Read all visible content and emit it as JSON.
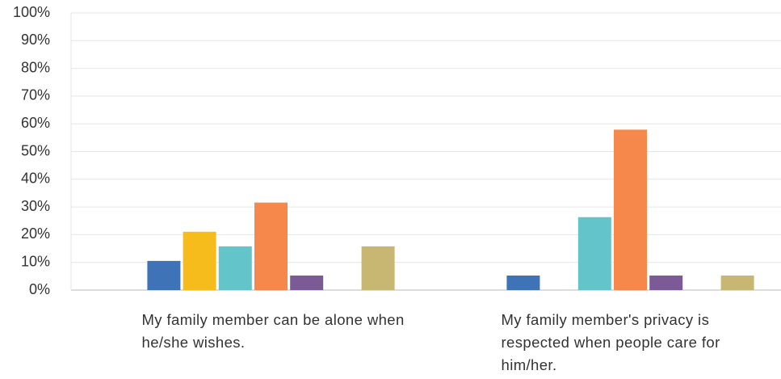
{
  "chart_data": {
    "type": "bar",
    "categories": [
      "My family member can be alone when he/she wishes.",
      "My family member's privacy is respected when people care for him/her."
    ],
    "series": [
      {
        "color": "#3f73b8",
        "values": [
          10.53,
          5.26
        ]
      },
      {
        "color": "#f5bc1c",
        "values": [
          21.05,
          0
        ]
      },
      {
        "color": "#63c5c9",
        "values": [
          15.79,
          26.32
        ]
      },
      {
        "color": "#f5884a",
        "values": [
          31.58,
          57.89
        ]
      },
      {
        "color": "#7b5a96",
        "values": [
          5.26,
          5.26
        ]
      },
      {
        "color": "#a3c649",
        "values": [
          0,
          0
        ]
      },
      {
        "color": "#c8b673",
        "values": [
          15.79,
          5.26
        ]
      }
    ],
    "ylim": [
      0,
      100
    ],
    "yticks": [
      {
        "value": 0,
        "label": "0%"
      },
      {
        "value": 10,
        "label": "10%"
      },
      {
        "value": 20,
        "label": "20%"
      },
      {
        "value": 30,
        "label": "30%"
      },
      {
        "value": 40,
        "label": "40%"
      },
      {
        "value": 50,
        "label": "50%"
      },
      {
        "value": 60,
        "label": "60%"
      },
      {
        "value": 70,
        "label": "70%"
      },
      {
        "value": 80,
        "label": "80%"
      },
      {
        "value": 90,
        "label": "90%"
      },
      {
        "value": 100,
        "label": "100%"
      }
    ],
    "grid": true
  }
}
